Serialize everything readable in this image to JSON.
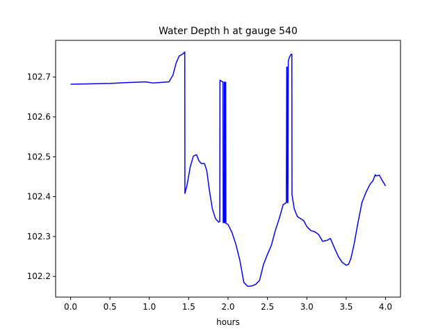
{
  "chart_data": {
    "type": "line",
    "title": "Water Depth h at gauge 540",
    "xlabel": "hours",
    "ylabel": "",
    "xlim": [
      -0.19,
      4.19
    ],
    "ylim": [
      102.148,
      102.792
    ],
    "xticks": [
      0.0,
      0.5,
      1.0,
      1.5,
      2.0,
      2.5,
      3.0,
      3.5,
      4.0
    ],
    "xtick_labels": [
      "0.0",
      "0.5",
      "1.0",
      "1.5",
      "2.0",
      "2.5",
      "3.0",
      "3.5",
      "4.0"
    ],
    "yticks": [
      102.2,
      102.3,
      102.4,
      102.5,
      102.6,
      102.7
    ],
    "ytick_labels": [
      "102.2",
      "102.3",
      "102.4",
      "102.5",
      "102.6",
      "102.7"
    ],
    "grid": false,
    "legend": "none",
    "series": [
      {
        "color": "#0000ff",
        "x": [
          0.0,
          0.5,
          0.7,
          0.95,
          1.05,
          1.25,
          1.3,
          1.34,
          1.38,
          1.42,
          1.45,
          1.452,
          1.48,
          1.52,
          1.56,
          1.6,
          1.63,
          1.66,
          1.7,
          1.73,
          1.76,
          1.8,
          1.84,
          1.88,
          1.895,
          1.897,
          1.93,
          1.935,
          1.938,
          1.95,
          1.952,
          1.955,
          1.958,
          1.96,
          1.963,
          1.97,
          1.973,
          2.0,
          2.05,
          2.1,
          2.15,
          2.2,
          2.25,
          2.3,
          2.35,
          2.4,
          2.45,
          2.5,
          2.55,
          2.6,
          2.65,
          2.7,
          2.74,
          2.745,
          2.75,
          2.755,
          2.76,
          2.765,
          2.78,
          2.8,
          2.81,
          2.812,
          2.84,
          2.88,
          2.92,
          2.96,
          3.0,
          3.05,
          3.1,
          3.15,
          3.2,
          3.25,
          3.3,
          3.35,
          3.4,
          3.45,
          3.5,
          3.53,
          3.56,
          3.6,
          3.65,
          3.7,
          3.75,
          3.8,
          3.84,
          3.87,
          3.88,
          3.92,
          3.96,
          4.0
        ],
        "y": [
          102.682,
          102.684,
          102.686,
          102.688,
          102.685,
          102.688,
          102.705,
          102.735,
          102.753,
          102.757,
          102.763,
          102.408,
          102.43,
          102.475,
          102.502,
          102.505,
          102.49,
          102.483,
          102.483,
          102.465,
          102.42,
          102.37,
          102.345,
          102.336,
          102.338,
          102.692,
          102.688,
          102.688,
          102.335,
          102.335,
          102.687,
          102.687,
          102.335,
          102.335,
          102.687,
          102.687,
          102.333,
          102.33,
          102.31,
          102.28,
          102.24,
          102.185,
          102.175,
          102.176,
          102.18,
          102.19,
          102.23,
          102.255,
          102.278,
          102.315,
          102.345,
          102.38,
          102.385,
          102.725,
          102.725,
          102.385,
          102.385,
          102.74,
          102.75,
          102.757,
          102.757,
          102.405,
          102.37,
          102.35,
          102.345,
          102.34,
          102.325,
          102.315,
          102.312,
          102.305,
          102.288,
          102.29,
          102.295,
          102.272,
          102.25,
          102.235,
          102.228,
          102.23,
          102.245,
          102.28,
          102.335,
          102.385,
          102.41,
          102.43,
          102.44,
          102.455,
          102.452,
          102.454,
          102.44,
          102.427
        ]
      }
    ]
  }
}
